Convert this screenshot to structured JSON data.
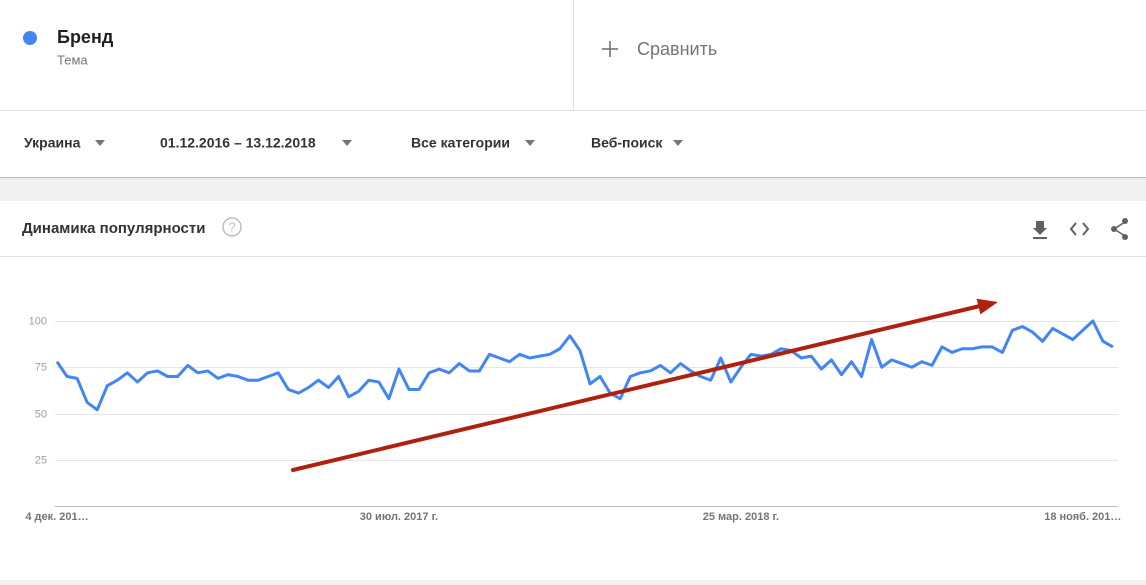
{
  "topic_type": "Тема",
  "compare": "Сравнить",
  "filters": [
    "Украина",
    "01.12.2016 – 13.12.2018",
    "Все категории",
    "Веб-поиск"
  ],
  "help_icon": "?",
  "chart_data": {
    "type": "line",
    "title": "Динамика популярности",
    "categories": [
      "4 дек. 201…",
      null,
      null,
      null,
      null,
      null,
      null,
      null,
      null,
      null,
      null,
      null,
      null,
      null,
      null,
      null,
      null,
      null,
      null,
      null,
      null,
      null,
      null,
      null,
      null,
      null,
      null,
      null,
      null,
      null,
      null,
      null,
      null,
      null,
      "30 июл. 2017 г.",
      null,
      null,
      null,
      null,
      null,
      null,
      null,
      null,
      null,
      null,
      null,
      null,
      null,
      null,
      null,
      null,
      null,
      null,
      null,
      null,
      null,
      null,
      null,
      null,
      null,
      null,
      null,
      null,
      null,
      null,
      null,
      null,
      null,
      "25 мар. 2018 г.",
      null,
      null,
      null,
      null,
      null,
      null,
      null,
      null,
      null,
      null,
      null,
      null,
      null,
      null,
      null,
      null,
      null,
      null,
      null,
      null,
      null,
      null,
      null,
      null,
      null,
      null,
      null,
      null,
      null,
      null,
      null,
      null,
      null,
      "18 нояб. 201…",
      null,
      null,
      null
    ],
    "series": [
      {
        "name": "Бренд",
        "color": "#4285f4",
        "values": [
          78,
          70,
          69,
          56,
          52,
          65,
          68,
          72,
          67,
          72,
          73,
          70,
          70,
          76,
          72,
          73,
          69,
          71,
          70,
          68,
          68,
          70,
          72,
          63,
          61,
          64,
          68,
          64,
          70,
          59,
          62,
          68,
          67,
          58,
          74,
          63,
          63,
          72,
          74,
          72,
          77,
          73,
          73,
          82,
          80,
          78,
          82,
          80,
          81,
          82,
          85,
          92,
          84,
          66,
          70,
          61,
          58,
          70,
          72,
          73,
          76,
          72,
          77,
          73,
          70,
          68,
          80,
          67,
          75,
          82,
          81,
          82,
          85,
          84,
          80,
          81,
          74,
          79,
          71,
          78,
          70,
          90,
          75,
          79,
          77,
          75,
          78,
          76,
          86,
          83,
          85,
          85,
          86,
          86,
          83,
          95,
          97,
          94,
          89,
          96,
          93,
          90,
          95,
          100,
          89,
          86
        ]
      }
    ],
    "ylim": [
      0,
      100
    ],
    "yticks": [
      25,
      50,
      75,
      100
    ],
    "grid": true
  }
}
